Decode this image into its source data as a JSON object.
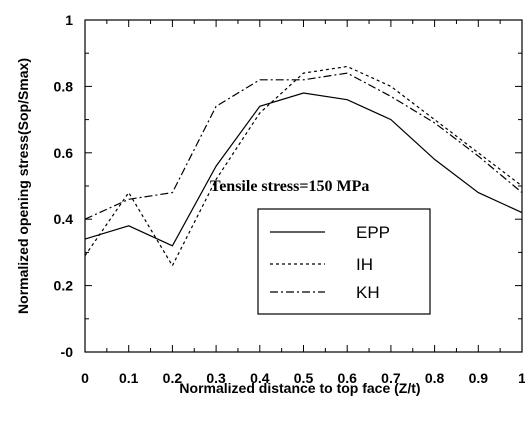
{
  "chart_data": {
    "type": "line",
    "title": "",
    "xlabel": "Normalized distance to top face (Z/t)",
    "ylabel": "Normalized opening stress(Sop/Smax)",
    "xlim": [
      0,
      1
    ],
    "ylim": [
      -0.0,
      1
    ],
    "x_ticks": [
      "0",
      "0.1",
      "0.2",
      "0.3",
      "0.4",
      "0.5",
      "0.6",
      "0.7",
      "0.8",
      "0.9",
      "1"
    ],
    "y_ticks": [
      "-0",
      "0.2",
      "0.4",
      "0.6",
      "0.8",
      "1"
    ],
    "grid": false,
    "annotation": "Tensile stress=150 MPa",
    "legend_position": "center-right",
    "x": [
      0,
      0.1,
      0.2,
      0.3,
      0.4,
      0.5,
      0.6,
      0.7,
      0.8,
      0.9,
      1.0
    ],
    "series": [
      {
        "name": "EPP",
        "style": "solid",
        "values": [
          0.34,
          0.38,
          0.32,
          0.56,
          0.74,
          0.78,
          0.76,
          0.7,
          0.58,
          0.48,
          0.42
        ]
      },
      {
        "name": "IH",
        "style": "dashed",
        "values": [
          0.29,
          0.48,
          0.26,
          0.52,
          0.72,
          0.84,
          0.86,
          0.8,
          0.7,
          0.6,
          0.5
        ]
      },
      {
        "name": "KH",
        "style": "dashdot",
        "values": [
          0.4,
          0.46,
          0.48,
          0.74,
          0.82,
          0.82,
          0.84,
          0.77,
          0.69,
          0.59,
          0.48
        ]
      }
    ]
  }
}
